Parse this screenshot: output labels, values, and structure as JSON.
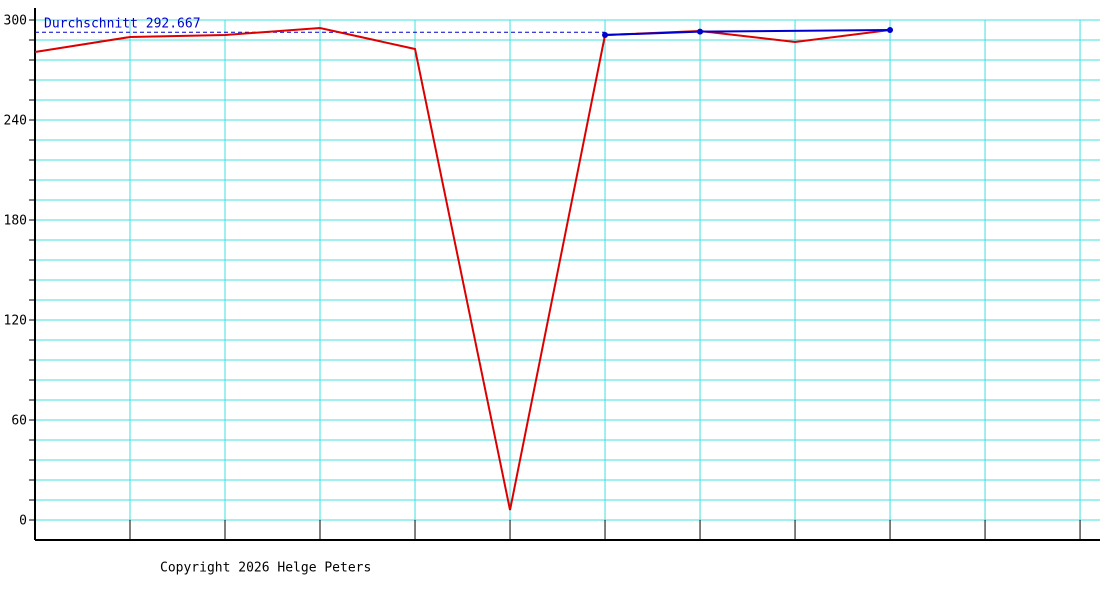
{
  "chart_data": {
    "type": "line",
    "xlim": [
      0,
      11.21
    ],
    "xticks": [
      0,
      1,
      2,
      3,
      4,
      5,
      6,
      7,
      8,
      9,
      10,
      11
    ],
    "ylim": [
      -12,
      307.2
    ],
    "yticks": [
      0,
      60,
      120,
      180,
      240,
      300
    ],
    "yminorticks": [
      0,
      12,
      24,
      36,
      48,
      60,
      72,
      84,
      96,
      108,
      120,
      132,
      144,
      156,
      168,
      180,
      192,
      204,
      216,
      228,
      240,
      252,
      264,
      276,
      288,
      300
    ],
    "grid": true,
    "grid_color": "#40e0e0",
    "series": [
      {
        "color": "#dd0000",
        "x": [
          0,
          1,
          2,
          3,
          4,
          5,
          6,
          7,
          8,
          9
        ],
        "values": [
          280.8,
          289.8,
          291,
          295.2,
          282.6,
          6,
          291,
          293.4,
          286.8,
          294
        ]
      },
      {
        "color": "#0000cc",
        "markers": true,
        "x": [
          6,
          7,
          9
        ],
        "values": [
          291,
          293,
          294
        ]
      }
    ],
    "average": {
      "label": "Durchschnitt 292.667",
      "value": 292.667,
      "color": "#0000cc"
    },
    "footer": "Copyright 2026 Helge Peters"
  }
}
